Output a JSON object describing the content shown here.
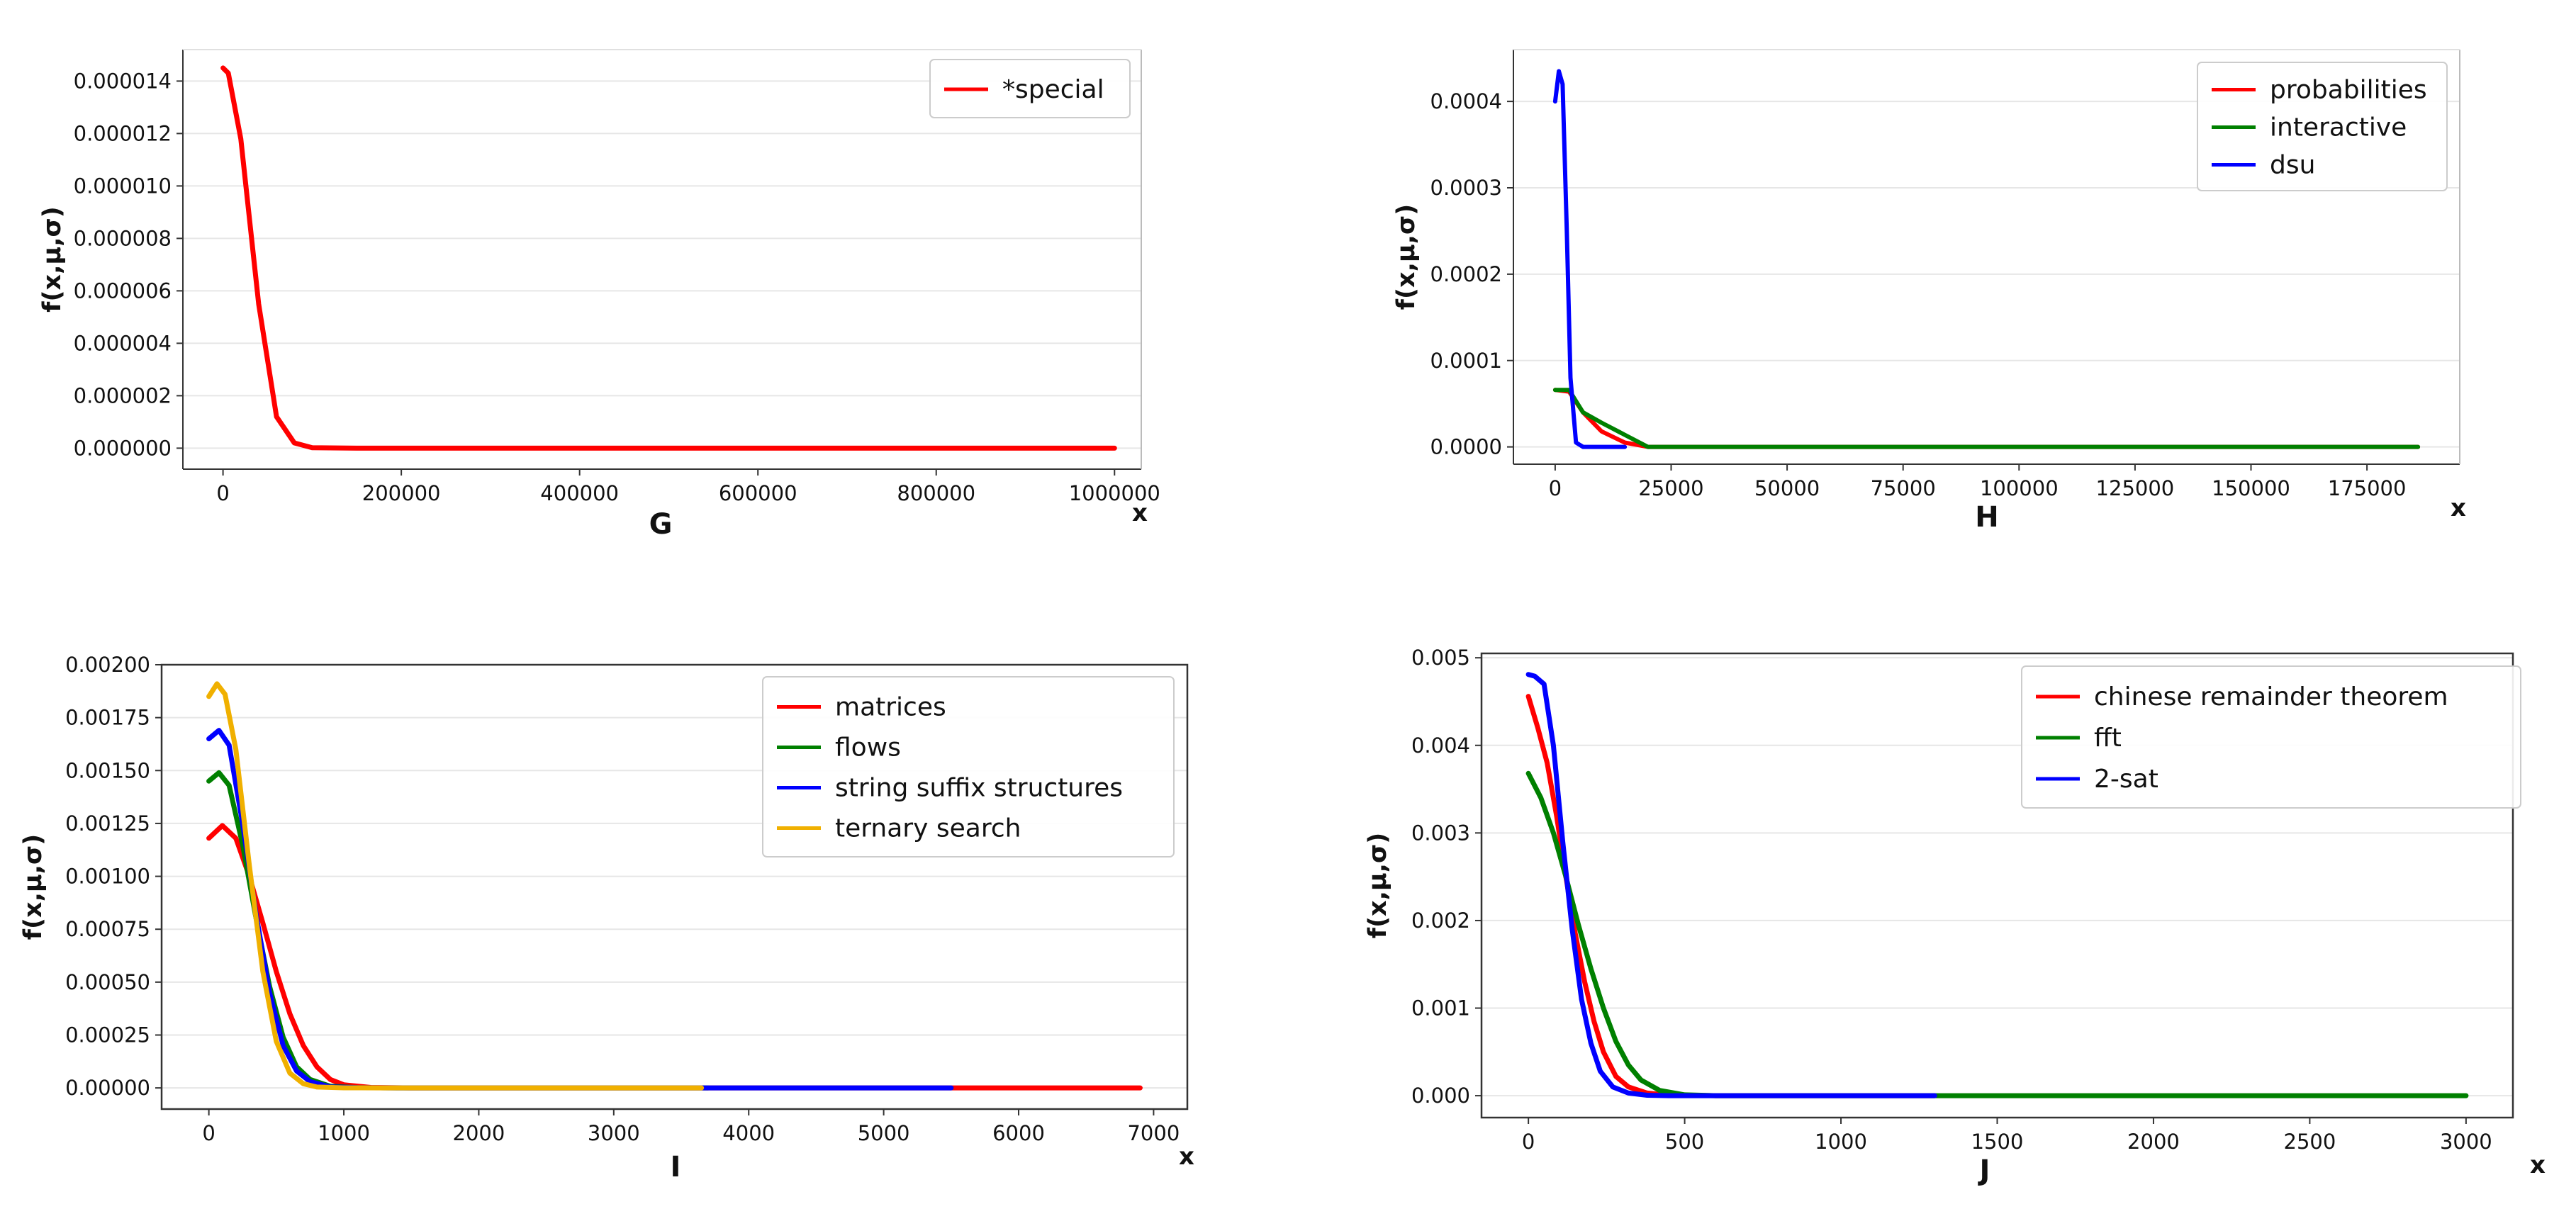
{
  "chart_data": [
    {
      "id": "G",
      "type": "line",
      "title": "",
      "panel_label": "G",
      "xlabel": "x",
      "ylabel": "f(x,μ,σ)",
      "xlim": [
        -45000,
        1030000
      ],
      "ylim": [
        -8e-07,
        1.52e-05
      ],
      "xticks": [
        0,
        200000,
        400000,
        600000,
        800000,
        1000000
      ],
      "xtick_labels": [
        "0",
        "200000",
        "400000",
        "600000",
        "800000",
        "1000000"
      ],
      "yticks": [
        0,
        2e-06,
        4e-06,
        6e-06,
        8e-06,
        1e-05,
        1.2e-05,
        1.4e-05
      ],
      "ytick_labels": [
        "0.000000",
        "0.000002",
        "0.000004",
        "0.000006",
        "0.000008",
        "0.000010",
        "0.000012",
        "0.000014"
      ],
      "grid": true,
      "legend_position": "top-right",
      "series": [
        {
          "name": "*special",
          "color": "#ff0000",
          "x": [
            0,
            6000,
            20000,
            40000,
            60000,
            80000,
            100000,
            150000,
            1000000
          ],
          "y": [
            1.45e-05,
            1.43e-05,
            1.18e-05,
            5.5e-06,
            1.2e-06,
            2e-07,
            2e-08,
            0,
            0
          ]
        }
      ]
    },
    {
      "id": "H",
      "type": "line",
      "title": "",
      "panel_label": "H",
      "xlabel": "x",
      "ylabel": "f(x,μ,σ)",
      "xlim": [
        -9000,
        195000
      ],
      "ylim": [
        -2e-05,
        0.00046
      ],
      "xticks": [
        0,
        25000,
        50000,
        75000,
        100000,
        125000,
        150000,
        175000
      ],
      "xtick_labels": [
        "0",
        "25000",
        "50000",
        "75000",
        "100000",
        "125000",
        "150000",
        "175000"
      ],
      "yticks": [
        0,
        0.0001,
        0.0002,
        0.0003,
        0.0004
      ],
      "ytick_labels": [
        "0.0000",
        "0.0001",
        "0.0002",
        "0.0003",
        "0.0004"
      ],
      "grid": true,
      "legend_position": "top-right",
      "series": [
        {
          "name": "probabilities",
          "color": "#ff0000",
          "x": [
            0,
            3000,
            6000,
            10000,
            15000,
            20000,
            186000
          ],
          "y": [
            6.6e-05,
            6.4e-05,
            4e-05,
            1.8e-05,
            5e-06,
            0,
            0
          ]
        },
        {
          "name": "interactive",
          "color": "#008000",
          "x": [
            0,
            3000,
            6000,
            10000,
            15000,
            20000,
            186000
          ],
          "y": [
            6.6e-05,
            6.6e-05,
            4e-05,
            2.8e-05,
            1.4e-05,
            0,
            0
          ]
        },
        {
          "name": "dsu",
          "color": "#0000ff",
          "x": [
            0,
            800,
            1600,
            2500,
            3300,
            4500,
            6000,
            15000
          ],
          "y": [
            0.0004,
            0.000435,
            0.00042,
            0.00025,
            8e-05,
            5e-06,
            0,
            0
          ]
        }
      ]
    },
    {
      "id": "I",
      "type": "line",
      "title": "",
      "panel_label": "I",
      "xlabel": "x",
      "ylabel": "f(x,μ,σ)",
      "xlim": [
        -350,
        7250
      ],
      "ylim": [
        -0.0001,
        0.002
      ],
      "xticks": [
        0,
        1000,
        2000,
        3000,
        4000,
        5000,
        6000,
        7000
      ],
      "xtick_labels": [
        "0",
        "1000",
        "2000",
        "3000",
        "4000",
        "5000",
        "6000",
        "7000"
      ],
      "yticks": [
        0,
        0.00025,
        0.0005,
        0.00075,
        0.001,
        0.00125,
        0.0015,
        0.00175,
        0.002
      ],
      "ytick_labels": [
        "0.00000",
        "0.00025",
        "0.00050",
        "0.00075",
        "0.00100",
        "0.00125",
        "0.00150",
        "0.00175",
        "0.00200"
      ],
      "grid": true,
      "legend_position": "top-right",
      "series": [
        {
          "name": "matrices",
          "color": "#ff0000",
          "x": [
            0,
            100,
            200,
            300,
            400,
            500,
            600,
            700,
            800,
            900,
            1000,
            1200,
            1500,
            6900
          ],
          "y": [
            0.00118,
            0.00124,
            0.00118,
            0.001,
            0.00078,
            0.00055,
            0.00035,
            0.0002,
            0.0001,
            4e-05,
            1.5e-05,
            2e-06,
            0,
            0
          ]
        },
        {
          "name": "flows",
          "color": "#008000",
          "x": [
            0,
            75,
            150,
            250,
            350,
            450,
            550,
            650,
            750,
            900,
            1100,
            1400,
            3700
          ],
          "y": [
            0.00145,
            0.00149,
            0.00143,
            0.00115,
            0.0008,
            0.00048,
            0.00024,
            0.0001,
            4e-05,
            8e-06,
            1e-06,
            0,
            0
          ]
        },
        {
          "name": "string suffix structures",
          "color": "#0000ff",
          "x": [
            0,
            75,
            150,
            250,
            350,
            450,
            550,
            650,
            750,
            900,
            1100,
            1400,
            5500
          ],
          "y": [
            0.00165,
            0.00169,
            0.00162,
            0.00125,
            0.00082,
            0.00045,
            0.0002,
            8e-05,
            3e-05,
            5e-06,
            1e-06,
            0,
            0
          ]
        },
        {
          "name": "ternary search",
          "color": "#f0b000",
          "x": [
            0,
            60,
            120,
            200,
            300,
            400,
            500,
            600,
            700,
            800,
            1000,
            1300,
            3650
          ],
          "y": [
            0.00185,
            0.00191,
            0.00186,
            0.0016,
            0.00105,
            0.00055,
            0.00022,
            7e-05,
            2e-05,
            4e-06,
            5e-07,
            0,
            0
          ]
        }
      ]
    },
    {
      "id": "J",
      "type": "line",
      "title": "",
      "panel_label": "J",
      "xlabel": "x",
      "ylabel": "f(x,μ,σ)",
      "xlim": [
        -150,
        3150
      ],
      "ylim": [
        -0.00025,
        0.00505
      ],
      "xticks": [
        0,
        500,
        1000,
        1500,
        2000,
        2500,
        3000
      ],
      "xtick_labels": [
        "0",
        "500",
        "1000",
        "1500",
        "2000",
        "2500",
        "3000"
      ],
      "yticks": [
        0,
        0.001,
        0.002,
        0.003,
        0.004,
        0.005
      ],
      "ytick_labels": [
        "0.000",
        "0.001",
        "0.002",
        "0.003",
        "0.004",
        "0.005"
      ],
      "grid": true,
      "legend_position": "top-right",
      "series": [
        {
          "name": "chinese remainder theorem",
          "color": "#ff0000",
          "x": [
            0,
            30,
            60,
            90,
            120,
            150,
            180,
            210,
            240,
            280,
            320,
            380,
            450,
            600,
            1300
          ],
          "y": [
            0.00456,
            0.0042,
            0.0038,
            0.0032,
            0.0025,
            0.00185,
            0.0013,
            0.00085,
            0.0005,
            0.00022,
            0.0001,
            3e-05,
            5e-06,
            0,
            0
          ]
        },
        {
          "name": "fft",
          "color": "#008000",
          "x": [
            0,
            40,
            80,
            120,
            160,
            200,
            240,
            280,
            320,
            360,
            420,
            500,
            600,
            3000
          ],
          "y": [
            0.00368,
            0.0034,
            0.003,
            0.0025,
            0.00195,
            0.00145,
            0.001,
            0.00062,
            0.00035,
            0.00018,
            6e-05,
            1e-05,
            0,
            0
          ]
        },
        {
          "name": "2-sat",
          "color": "#0000ff",
          "x": [
            0,
            20,
            50,
            80,
            110,
            140,
            170,
            200,
            230,
            270,
            320,
            380,
            450,
            1300
          ],
          "y": [
            0.00481,
            0.00479,
            0.0047,
            0.004,
            0.0029,
            0.0019,
            0.0011,
            0.0006,
            0.00028,
            0.0001,
            3e-05,
            5e-06,
            0,
            0
          ]
        }
      ]
    }
  ]
}
